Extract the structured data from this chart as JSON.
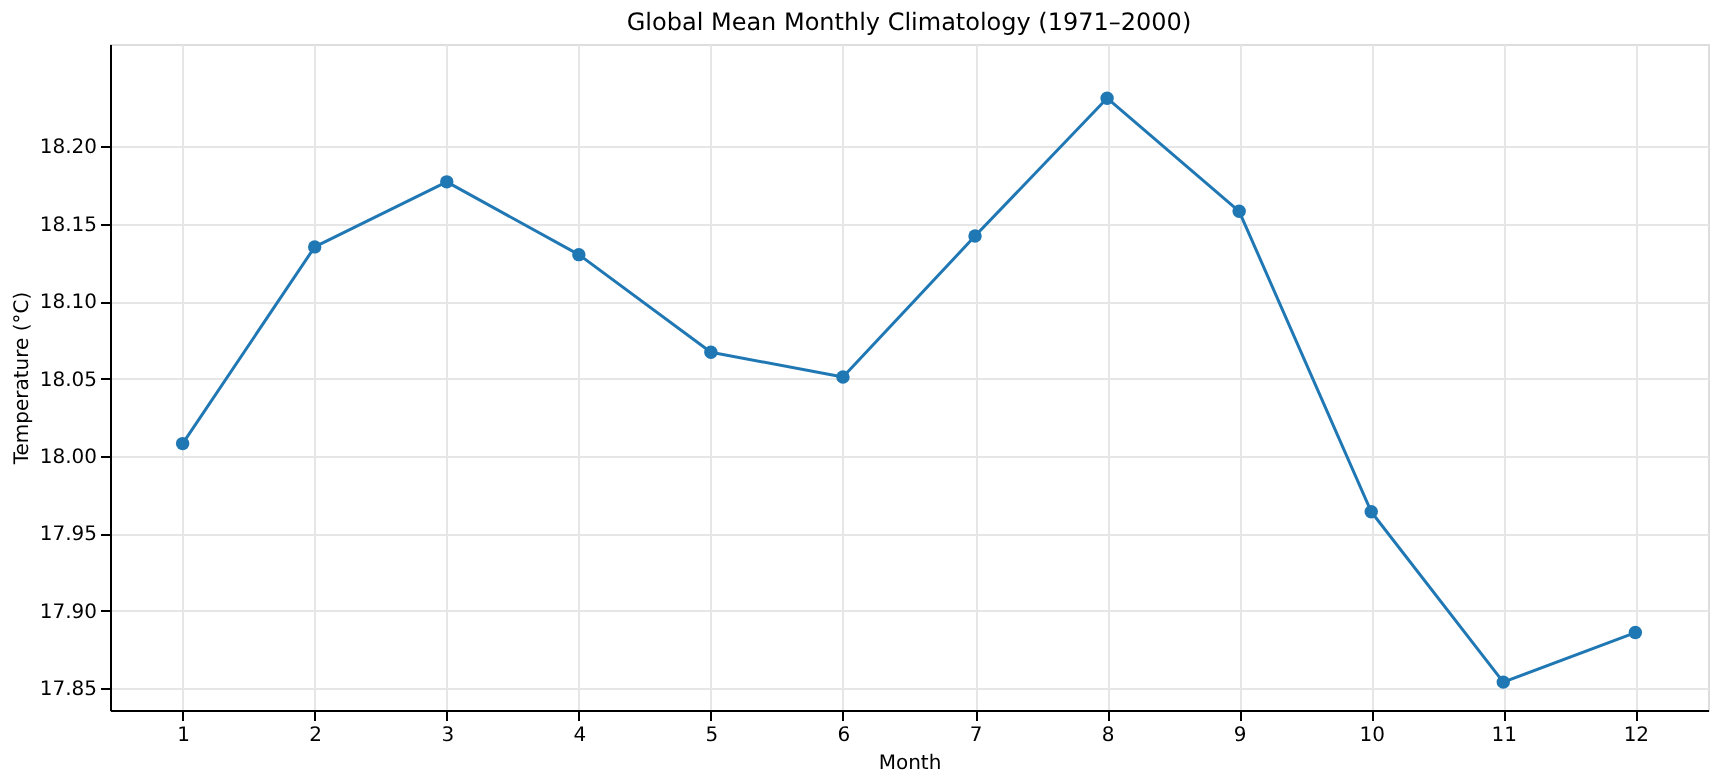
{
  "chart_data": {
    "type": "line",
    "title": "Global Mean Monthly Climatology (1971–2000)",
    "xlabel": "Month",
    "ylabel": "Temperature (°C)",
    "x": [
      1,
      2,
      3,
      4,
      5,
      6,
      7,
      8,
      9,
      10,
      11,
      12
    ],
    "series": [
      {
        "color": "#1f77b4",
        "values": [
          18.008,
          18.135,
          18.177,
          18.13,
          18.067,
          18.051,
          18.142,
          18.231,
          18.158,
          17.964,
          17.854,
          17.886
        ]
      }
    ],
    "xlim": [
      0.45,
      12.55
    ],
    "xticks": [
      1,
      2,
      3,
      4,
      5,
      6,
      7,
      8,
      9,
      10,
      11,
      12
    ],
    "ylim": [
      17.836,
      18.266
    ],
    "yticks": [
      17.85,
      {
        "value": 17.9,
        "label": "17.90"
      },
      17.95,
      {
        "value": 18.0,
        "label": "18.00"
      },
      18.05,
      {
        "value": 18.1,
        "label": "18.10"
      },
      18.15,
      {
        "value": 18.2,
        "label": "18.20"
      }
    ],
    "grid": true,
    "marker": "circle",
    "line_style": "solid"
  }
}
